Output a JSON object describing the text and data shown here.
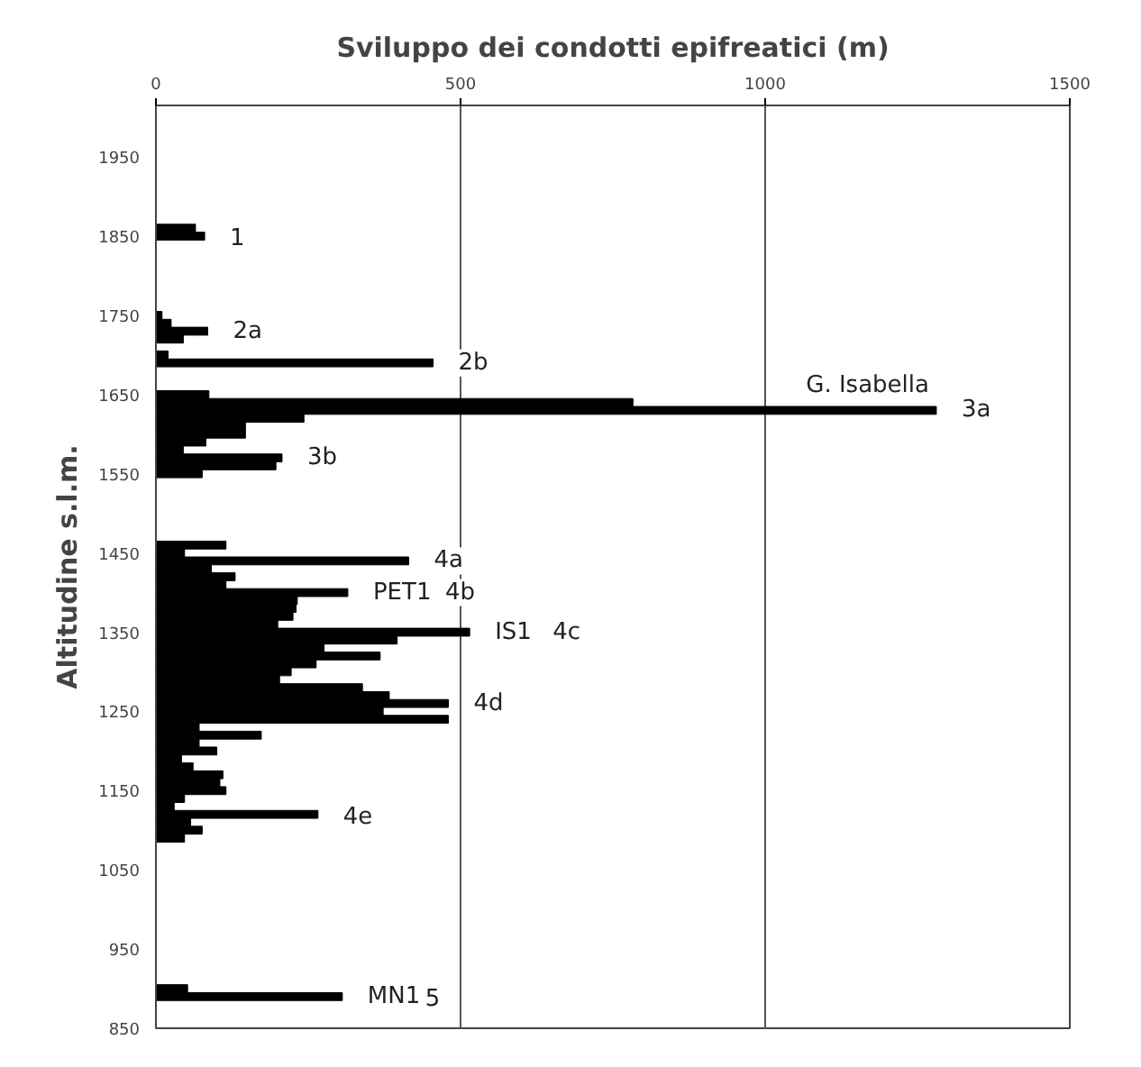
{
  "chart_data": {
    "type": "bar",
    "orientation": "horizontal",
    "xlabel": "Sviluppo dei condotti epifreatici (m)",
    "ylabel": "Altitudine s.l.m.",
    "x": [
      1860,
      1850,
      1750,
      1740,
      1730,
      1720,
      1700,
      1690,
      1650,
      1640,
      1630,
      1620,
      1610,
      1600,
      1590,
      1580,
      1570,
      1560,
      1550,
      1460,
      1450,
      1440,
      1430,
      1420,
      1410,
      1400,
      1390,
      1380,
      1370,
      1360,
      1350,
      1340,
      1330,
      1320,
      1310,
      1300,
      1290,
      1280,
      1270,
      1260,
      1250,
      1240,
      1230,
      1220,
      1210,
      1200,
      1190,
      1180,
      1170,
      1160,
      1150,
      1140,
      1130,
      1120,
      1110,
      1100,
      1090,
      900,
      890
    ],
    "values": [
      65,
      80,
      10,
      25,
      85,
      45,
      20,
      455,
      87,
      783,
      1281,
      243,
      147,
      147,
      82,
      45,
      207,
      197,
      76,
      115,
      47,
      415,
      91,
      130,
      115,
      315,
      232,
      230,
      225,
      200,
      515,
      396,
      276,
      368,
      263,
      222,
      203,
      339,
      383,
      480,
      373,
      480,
      71,
      173,
      71,
      100,
      42,
      61,
      110,
      105,
      115,
      47,
      30,
      266,
      57,
      76,
      47,
      52,
      306
    ],
    "color": "#000000",
    "xlim": [
      0,
      1500
    ],
    "xticks": [
      0,
      500,
      1000,
      1500
    ],
    "ylim": [
      850,
      2015
    ],
    "yticks": [
      850,
      950,
      1050,
      1150,
      1250,
      1350,
      1450,
      1550,
      1650,
      1750,
      1850,
      1950
    ],
    "grid": "x",
    "annotations": [
      {
        "text": "1",
        "x": 80,
        "y": 1850
      },
      {
        "text": "2a",
        "x": 85,
        "y": 1730
      },
      {
        "text": "2b",
        "x": 455,
        "y": 1690
      },
      {
        "text": "3a",
        "x": 1281,
        "y": 1630
      },
      {
        "text": "G. Isabella",
        "x": 1281,
        "y": 1630
      },
      {
        "text": "3b",
        "x": 207,
        "y": 1570
      },
      {
        "text": "4a",
        "x": 415,
        "y": 1440
      },
      {
        "text": "PET1",
        "x": 315,
        "y": 1400
      },
      "4b",
      {
        "text": "IS1",
        "x": 515,
        "y": 1350
      },
      "4c",
      {
        "text": "4d",
        "x": 480,
        "y": 1260
      },
      {
        "text": "4e",
        "x": 266,
        "y": 1120
      },
      {
        "text": "MN1",
        "x": 306,
        "y": 890
      },
      "5"
    ]
  }
}
